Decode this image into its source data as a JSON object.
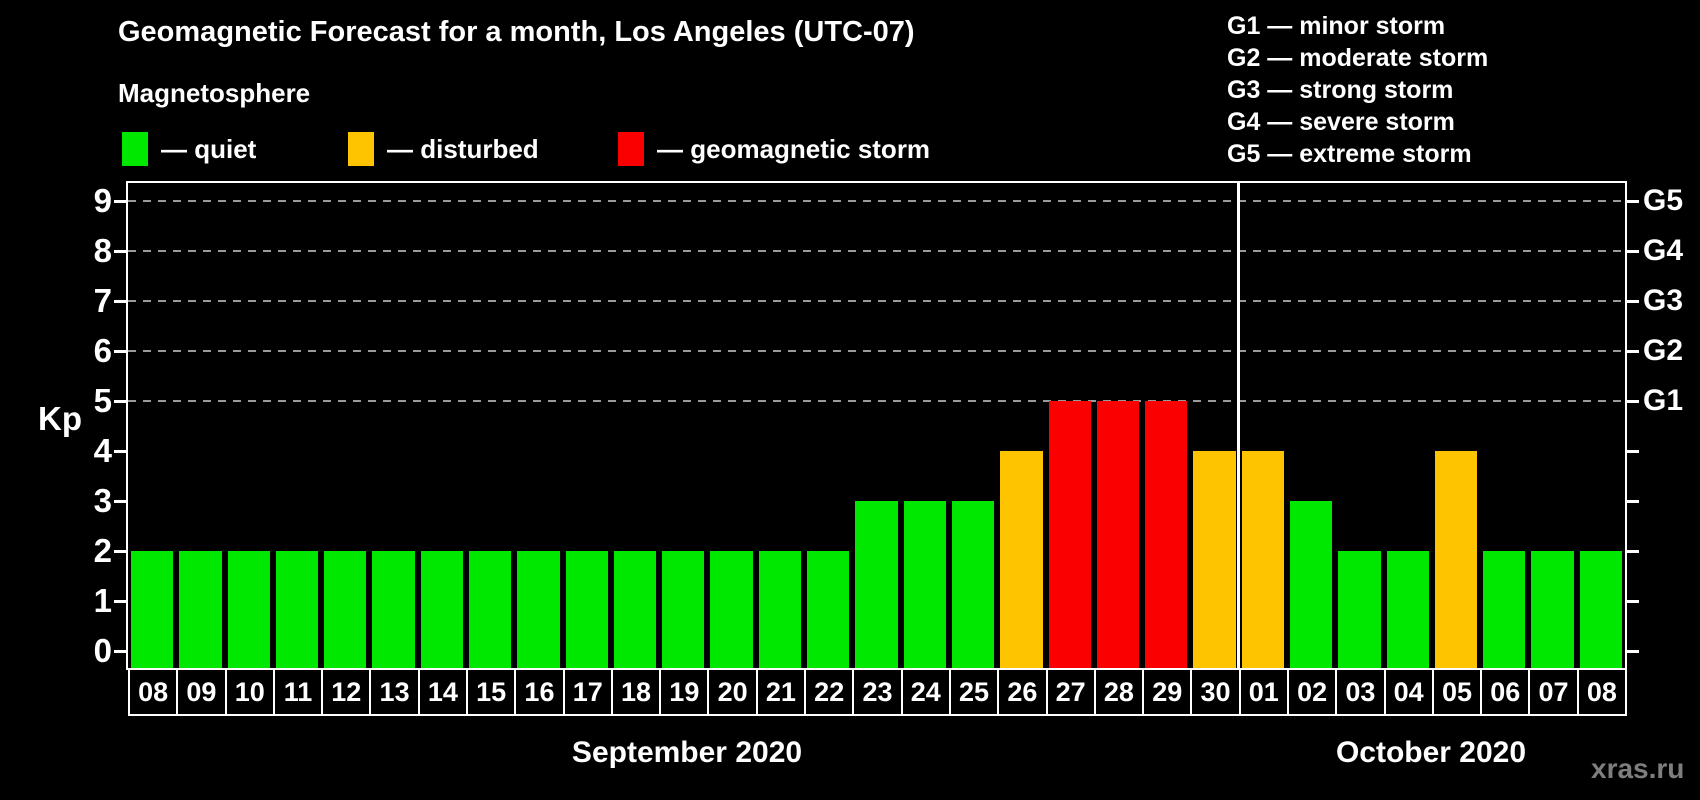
{
  "header": {
    "title": "Geomagnetic Forecast for a month, Los Angeles (UTC-07)",
    "subtitle": "Magnetosphere"
  },
  "legend": {
    "items": [
      {
        "name": "quiet",
        "label": "— quiet",
        "color": "#00e800"
      },
      {
        "name": "disturbed",
        "label": "— disturbed",
        "color": "#ffc400"
      },
      {
        "name": "storm",
        "label": "— geomagnetic storm",
        "color": "#fa0000"
      }
    ]
  },
  "g_legend": {
    "lines": [
      "G1 — minor storm",
      "G2 — moderate storm",
      "G3 — strong storm",
      "G4 — severe storm",
      "G5 — extreme storm"
    ]
  },
  "watermark": "xras.ru",
  "chart_data": {
    "type": "bar",
    "title": "Geomagnetic Forecast for a month, Los Angeles (UTC-07)",
    "ylabel": "Kp",
    "ylim": [
      0,
      9
    ],
    "y_ticks": [
      0,
      1,
      2,
      3,
      4,
      5,
      6,
      7,
      8,
      9
    ],
    "gridlines_at_kp": [
      5,
      6,
      7,
      8,
      9
    ],
    "grid_style": "dashed horizontal, gray, only at Kp 5-9",
    "right_axis_labels": [
      {
        "kp": 5,
        "label": "G1"
      },
      {
        "kp": 6,
        "label": "G2"
      },
      {
        "kp": 7,
        "label": "G3"
      },
      {
        "kp": 8,
        "label": "G4"
      },
      {
        "kp": 9,
        "label": "G5"
      }
    ],
    "status_colors": {
      "quiet": "#00e800",
      "disturbed": "#ffc400",
      "storm": "#fa0000"
    },
    "months": [
      {
        "label": "September 2020",
        "days": [
          {
            "day": "08",
            "kp": 2,
            "status": "quiet"
          },
          {
            "day": "09",
            "kp": 2,
            "status": "quiet"
          },
          {
            "day": "10",
            "kp": 2,
            "status": "quiet"
          },
          {
            "day": "11",
            "kp": 2,
            "status": "quiet"
          },
          {
            "day": "12",
            "kp": 2,
            "status": "quiet"
          },
          {
            "day": "13",
            "kp": 2,
            "status": "quiet"
          },
          {
            "day": "14",
            "kp": 2,
            "status": "quiet"
          },
          {
            "day": "15",
            "kp": 2,
            "status": "quiet"
          },
          {
            "day": "16",
            "kp": 2,
            "status": "quiet"
          },
          {
            "day": "17",
            "kp": 2,
            "status": "quiet"
          },
          {
            "day": "18",
            "kp": 2,
            "status": "quiet"
          },
          {
            "day": "19",
            "kp": 2,
            "status": "quiet"
          },
          {
            "day": "20",
            "kp": 2,
            "status": "quiet"
          },
          {
            "day": "21",
            "kp": 2,
            "status": "quiet"
          },
          {
            "day": "22",
            "kp": 2,
            "status": "quiet"
          },
          {
            "day": "23",
            "kp": 3,
            "status": "quiet"
          },
          {
            "day": "24",
            "kp": 3,
            "status": "quiet"
          },
          {
            "day": "25",
            "kp": 3,
            "status": "quiet"
          },
          {
            "day": "26",
            "kp": 4,
            "status": "disturbed"
          },
          {
            "day": "27",
            "kp": 5,
            "status": "storm"
          },
          {
            "day": "28",
            "kp": 5,
            "status": "storm"
          },
          {
            "day": "29",
            "kp": 5,
            "status": "storm"
          },
          {
            "day": "30",
            "kp": 4,
            "status": "disturbed"
          }
        ]
      },
      {
        "label": "October 2020",
        "days": [
          {
            "day": "01",
            "kp": 4,
            "status": "disturbed"
          },
          {
            "day": "02",
            "kp": 3,
            "status": "quiet"
          },
          {
            "day": "03",
            "kp": 2,
            "status": "quiet"
          },
          {
            "day": "04",
            "kp": 2,
            "status": "quiet"
          },
          {
            "day": "05",
            "kp": 4,
            "status": "disturbed"
          },
          {
            "day": "06",
            "kp": 2,
            "status": "quiet"
          },
          {
            "day": "07",
            "kp": 2,
            "status": "quiet"
          },
          {
            "day": "08",
            "kp": 2,
            "status": "quiet"
          }
        ]
      }
    ]
  }
}
